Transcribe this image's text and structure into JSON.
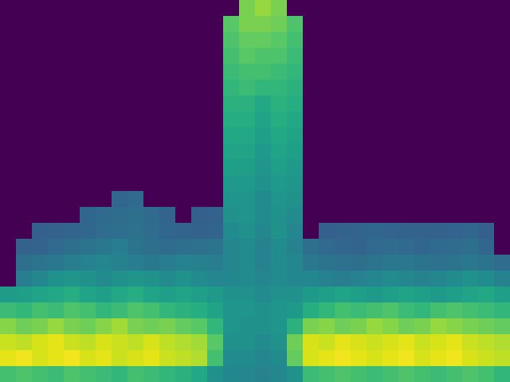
{
  "chart_data": {
    "type": "heatmap",
    "tick_labels": false,
    "zlim": [
      0,
      1
    ],
    "values": [
      [
        0,
        0,
        0,
        0,
        0,
        0,
        0,
        0,
        0,
        0,
        0,
        0,
        0,
        0,
        0,
        0.8,
        0.84,
        0.8,
        0,
        0,
        0,
        0,
        0,
        0,
        0,
        0,
        0,
        0,
        0,
        0,
        0,
        0
      ],
      [
        0,
        0,
        0,
        0,
        0,
        0,
        0,
        0,
        0,
        0,
        0,
        0,
        0,
        0,
        0.74,
        0.8,
        0.8,
        0.78,
        0.72,
        0,
        0,
        0,
        0,
        0,
        0,
        0,
        0,
        0,
        0,
        0,
        0,
        0
      ],
      [
        0,
        0,
        0,
        0,
        0,
        0,
        0,
        0,
        0,
        0,
        0,
        0,
        0,
        0,
        0.72,
        0.76,
        0.76,
        0.74,
        0.7,
        0,
        0,
        0,
        0,
        0,
        0,
        0,
        0,
        0,
        0,
        0,
        0,
        0
      ],
      [
        0,
        0,
        0,
        0,
        0,
        0,
        0,
        0,
        0,
        0,
        0,
        0,
        0,
        0,
        0.7,
        0.74,
        0.72,
        0.72,
        0.68,
        0,
        0,
        0,
        0,
        0,
        0,
        0,
        0,
        0,
        0,
        0,
        0,
        0
      ],
      [
        0,
        0,
        0,
        0,
        0,
        0,
        0,
        0,
        0,
        0,
        0,
        0,
        0,
        0,
        0.68,
        0.7,
        0.7,
        0.68,
        0.66,
        0,
        0,
        0,
        0,
        0,
        0,
        0,
        0,
        0,
        0,
        0,
        0,
        0
      ],
      [
        0,
        0,
        0,
        0,
        0,
        0,
        0,
        0,
        0,
        0,
        0,
        0,
        0,
        0,
        0.66,
        0.68,
        0.66,
        0.66,
        0.64,
        0,
        0,
        0,
        0,
        0,
        0,
        0,
        0,
        0,
        0,
        0,
        0,
        0
      ],
      [
        0,
        0,
        0,
        0,
        0,
        0,
        0,
        0,
        0,
        0,
        0,
        0,
        0,
        0,
        0.64,
        0.64,
        0.6,
        0.64,
        0.62,
        0,
        0,
        0,
        0,
        0,
        0,
        0,
        0,
        0,
        0,
        0,
        0,
        0
      ],
      [
        0,
        0,
        0,
        0,
        0,
        0,
        0,
        0,
        0,
        0,
        0,
        0,
        0,
        0,
        0.62,
        0.62,
        0.58,
        0.62,
        0.6,
        0,
        0,
        0,
        0,
        0,
        0,
        0,
        0,
        0,
        0,
        0,
        0,
        0
      ],
      [
        0,
        0,
        0,
        0,
        0,
        0,
        0,
        0,
        0,
        0,
        0,
        0,
        0,
        0,
        0.6,
        0.6,
        0.56,
        0.6,
        0.58,
        0,
        0,
        0,
        0,
        0,
        0,
        0,
        0,
        0,
        0,
        0,
        0,
        0
      ],
      [
        0,
        0,
        0,
        0,
        0,
        0,
        0,
        0,
        0,
        0,
        0,
        0,
        0,
        0,
        0.58,
        0.58,
        0.54,
        0.58,
        0.56,
        0,
        0,
        0,
        0,
        0,
        0,
        0,
        0,
        0,
        0,
        0,
        0,
        0
      ],
      [
        0,
        0,
        0,
        0,
        0,
        0,
        0,
        0,
        0,
        0,
        0,
        0,
        0,
        0,
        0.56,
        0.56,
        0.52,
        0.56,
        0.54,
        0,
        0,
        0,
        0,
        0,
        0,
        0,
        0,
        0,
        0,
        0,
        0,
        0
      ],
      [
        0,
        0,
        0,
        0,
        0,
        0,
        0,
        0,
        0,
        0,
        0,
        0,
        0,
        0,
        0.54,
        0.54,
        0.5,
        0.54,
        0.52,
        0,
        0,
        0,
        0,
        0,
        0,
        0,
        0,
        0,
        0,
        0,
        0,
        0
      ],
      [
        0,
        0,
        0,
        0,
        0,
        0,
        0,
        0.33,
        0.34,
        0,
        0,
        0,
        0,
        0,
        0.52,
        0.52,
        0.48,
        0.52,
        0.5,
        0,
        0,
        0,
        0,
        0,
        0,
        0,
        0,
        0,
        0,
        0,
        0,
        0
      ],
      [
        0,
        0,
        0,
        0,
        0,
        0.33,
        0.34,
        0.35,
        0.36,
        0.34,
        0.32,
        0,
        0.3,
        0.31,
        0.5,
        0.52,
        0.48,
        0.5,
        0.48,
        0,
        0,
        0,
        0,
        0,
        0,
        0,
        0,
        0,
        0,
        0,
        0,
        0
      ],
      [
        0,
        0,
        0.3,
        0.31,
        0.32,
        0.33,
        0.35,
        0.36,
        0.37,
        0.35,
        0.33,
        0.32,
        0.31,
        0.32,
        0.48,
        0.5,
        0.46,
        0.5,
        0.46,
        0,
        0.3,
        0.31,
        0.32,
        0.33,
        0.32,
        0.31,
        0.31,
        0.31,
        0.32,
        0.33,
        0.3,
        0
      ],
      [
        0,
        0.31,
        0.32,
        0.34,
        0.36,
        0.38,
        0.4,
        0.42,
        0.38,
        0.36,
        0.35,
        0.36,
        0.37,
        0.38,
        0.46,
        0.48,
        0.44,
        0.48,
        0.44,
        0.36,
        0.34,
        0.33,
        0.32,
        0.34,
        0.35,
        0.34,
        0.33,
        0.34,
        0.35,
        0.36,
        0.33,
        0
      ],
      [
        0,
        0.36,
        0.38,
        0.4,
        0.42,
        0.44,
        0.46,
        0.44,
        0.42,
        0.4,
        0.42,
        0.44,
        0.43,
        0.42,
        0.46,
        0.48,
        0.44,
        0.48,
        0.46,
        0.4,
        0.38,
        0.37,
        0.36,
        0.38,
        0.4,
        0.4,
        0.38,
        0.37,
        0.38,
        0.4,
        0.38,
        0.35
      ],
      [
        0,
        0.42,
        0.46,
        0.5,
        0.52,
        0.5,
        0.48,
        0.5,
        0.52,
        0.5,
        0.48,
        0.5,
        0.48,
        0.46,
        0.46,
        0.48,
        0.46,
        0.48,
        0.46,
        0.46,
        0.44,
        0.42,
        0.44,
        0.46,
        0.48,
        0.46,
        0.44,
        0.46,
        0.48,
        0.5,
        0.48,
        0.44
      ],
      [
        0.55,
        0.56,
        0.58,
        0.6,
        0.62,
        0.58,
        0.56,
        0.6,
        0.62,
        0.58,
        0.56,
        0.58,
        0.56,
        0.54,
        0.5,
        0.5,
        0.48,
        0.5,
        0.5,
        0.54,
        0.56,
        0.58,
        0.56,
        0.54,
        0.56,
        0.58,
        0.56,
        0.54,
        0.56,
        0.58,
        0.6,
        0.56
      ],
      [
        0.68,
        0.66,
        0.7,
        0.68,
        0.72,
        0.7,
        0.66,
        0.68,
        0.72,
        0.7,
        0.66,
        0.64,
        0.62,
        0.58,
        0.52,
        0.52,
        0.5,
        0.52,
        0.54,
        0.62,
        0.66,
        0.7,
        0.68,
        0.7,
        0.72,
        0.68,
        0.66,
        0.7,
        0.72,
        0.7,
        0.68,
        0.66
      ],
      [
        0.82,
        0.78,
        0.8,
        0.84,
        0.8,
        0.78,
        0.82,
        0.86,
        0.8,
        0.78,
        0.8,
        0.76,
        0.74,
        0.66,
        0.52,
        0.5,
        0.5,
        0.52,
        0.64,
        0.8,
        0.82,
        0.78,
        0.8,
        0.84,
        0.82,
        0.78,
        0.8,
        0.84,
        0.82,
        0.8,
        0.78,
        0.76
      ],
      [
        0.92,
        0.9,
        0.94,
        0.96,
        0.92,
        0.9,
        0.94,
        0.92,
        0.9,
        0.94,
        0.9,
        0.88,
        0.86,
        0.74,
        0.5,
        0.5,
        0.48,
        0.5,
        0.78,
        0.94,
        0.92,
        0.96,
        0.94,
        0.92,
        0.94,
        0.96,
        0.92,
        0.94,
        0.96,
        0.92,
        0.9,
        0.88
      ],
      [
        0.96,
        0.98,
        0.94,
        0.96,
        0.98,
        0.94,
        0.96,
        0.92,
        0.94,
        0.96,
        0.92,
        0.9,
        0.88,
        0.7,
        0.48,
        0.48,
        0.46,
        0.48,
        0.76,
        0.94,
        0.96,
        0.98,
        0.96,
        0.94,
        0.96,
        0.98,
        0.94,
        0.96,
        0.98,
        0.94,
        0.92,
        0.9
      ],
      [
        0.7,
        0.72,
        0.7,
        0.68,
        0.72,
        0.7,
        0.68,
        0.66,
        0.7,
        0.68,
        0.66,
        0.64,
        0.6,
        0.5,
        0.46,
        0.46,
        0.44,
        0.46,
        0.5,
        0.68,
        0.7,
        0.72,
        0.7,
        0.68,
        0.7,
        0.72,
        0.7,
        0.68,
        0.7,
        0.72,
        0.7,
        0.66
      ]
    ]
  }
}
